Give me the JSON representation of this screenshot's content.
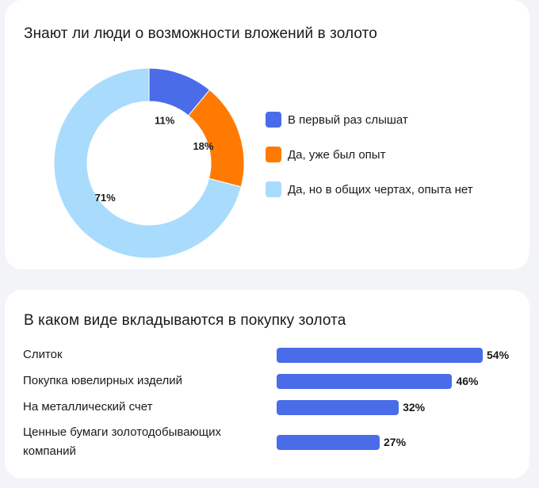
{
  "card1": {
    "title": "Знают ли люди о возможности вложений в золото"
  },
  "card2": {
    "title": "В каком виде вкладываются в покупку золота"
  },
  "chart_data": [
    {
      "type": "pie",
      "title": "Знают ли люди о возможности вложений в золото",
      "donut": true,
      "categories": [
        "В первый раз слышат",
        "Да, уже был опыт",
        "Да, но в общих чертах, опыта нет"
      ],
      "values": [
        11,
        18,
        71
      ],
      "labels": [
        "11%",
        "18%",
        "71%"
      ],
      "colors": [
        "#4a6ce8",
        "#ff7a00",
        "#a9dbfd"
      ],
      "legend": "right"
    },
    {
      "type": "bar",
      "orientation": "horizontal",
      "title": "В каком виде вкладываются в покупку золота",
      "categories": [
        "Слиток",
        "Покупка ювелирных изделий",
        "На металлический счет",
        "Ценные бумаги золотодобывающих компаний"
      ],
      "values": [
        54,
        46,
        32,
        27
      ],
      "labels": [
        "54%",
        "46%",
        "32%",
        "27%"
      ],
      "color": "#4a6ce8"
    }
  ]
}
